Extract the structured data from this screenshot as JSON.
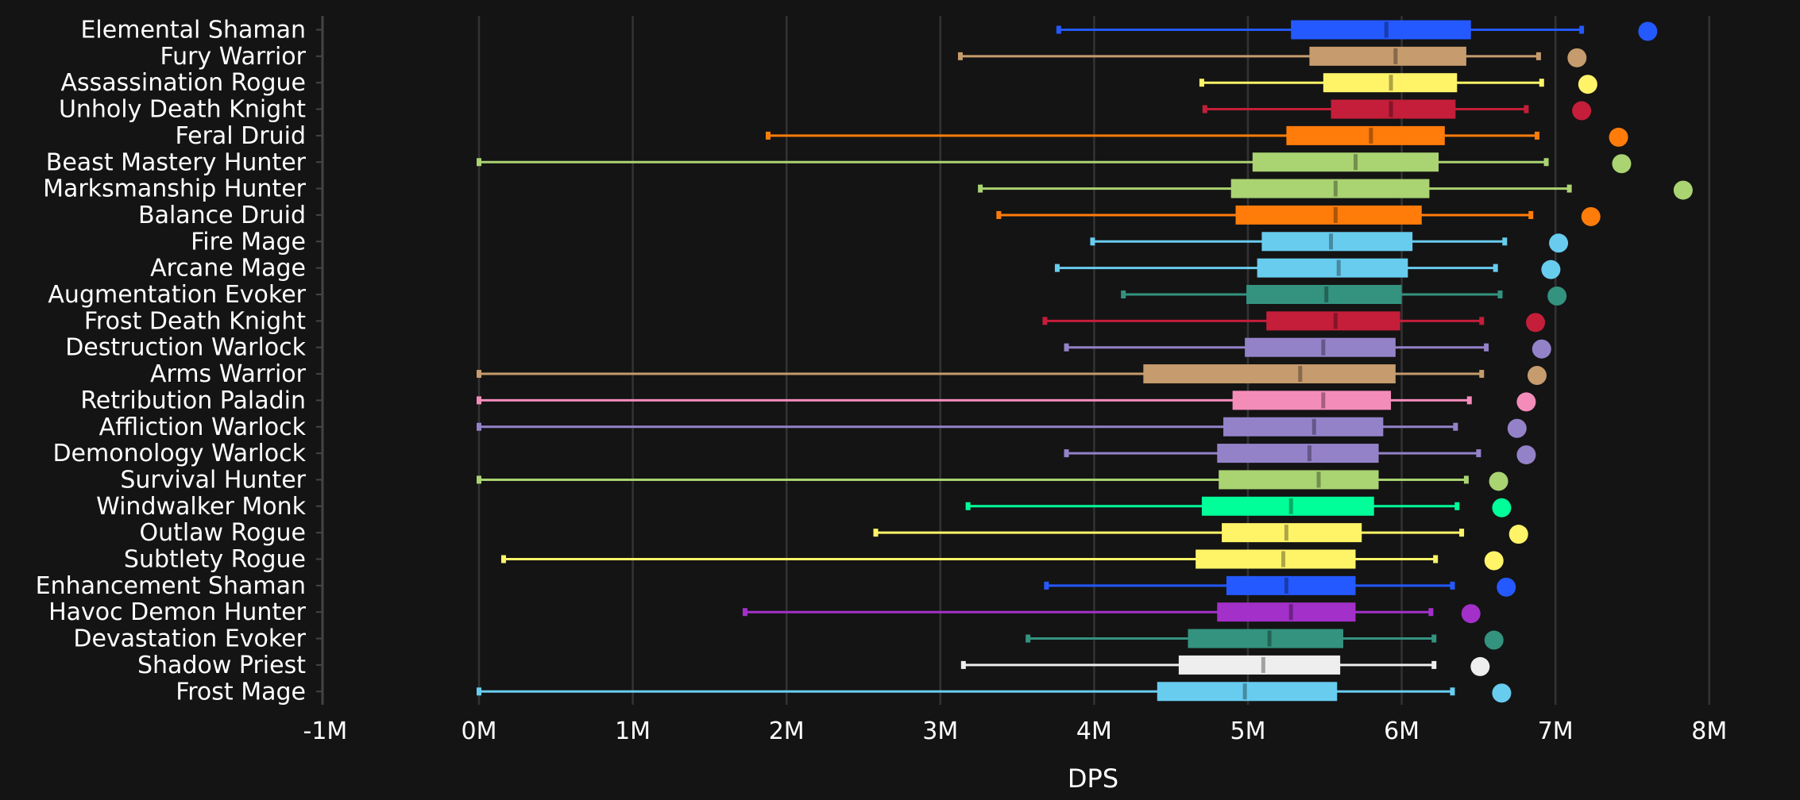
{
  "chart_data": {
    "type": "box",
    "title": "",
    "xlabel": "DPS",
    "ylabel": "",
    "xlim": [
      -1000000,
      8300000
    ],
    "x_ticks": [
      -1000000,
      0,
      1000000,
      2000000,
      3000000,
      4000000,
      5000000,
      6000000,
      7000000,
      8000000
    ],
    "x_tick_labels": [
      "-1M",
      "0M",
      "1M",
      "2M",
      "3M",
      "4M",
      "5M",
      "6M",
      "7M",
      "8M"
    ],
    "grid": "vertical",
    "background": "#141414",
    "series": [
      {
        "name": "Elemental Shaman",
        "color": "#2459ff",
        "min": 3.77,
        "q1": 5.28,
        "median": 5.9,
        "q3": 6.45,
        "max": 7.17,
        "max_point": 7.6
      },
      {
        "name": "Fury Warrior",
        "color": "#c69b6d",
        "min": 3.13,
        "q1": 5.4,
        "median": 5.96,
        "q3": 6.42,
        "max": 6.89,
        "max_point": 7.14
      },
      {
        "name": "Assassination Rogue",
        "color": "#fff468",
        "min": 4.7,
        "q1": 5.49,
        "median": 5.93,
        "q3": 6.36,
        "max": 6.91,
        "max_point": 7.21
      },
      {
        "name": "Unholy Death Knight",
        "color": "#c41e3a",
        "min": 4.72,
        "q1": 5.54,
        "median": 5.93,
        "q3": 6.35,
        "max": 6.81,
        "max_point": 7.17
      },
      {
        "name": "Feral Druid",
        "color": "#ff7c0a",
        "min": 1.88,
        "q1": 5.25,
        "median": 5.8,
        "q3": 6.28,
        "max": 6.88,
        "max_point": 7.41
      },
      {
        "name": "Beast Mastery Hunter",
        "color": "#aad372",
        "min": 0.0,
        "q1": 5.03,
        "median": 5.7,
        "q3": 6.24,
        "max": 6.94,
        "max_point": 7.43
      },
      {
        "name": "Marksmanship Hunter",
        "color": "#aad372",
        "min": 3.26,
        "q1": 4.89,
        "median": 5.57,
        "q3": 6.18,
        "max": 7.09,
        "max_point": 7.83
      },
      {
        "name": "Balance Druid",
        "color": "#ff7c0a",
        "min": 3.38,
        "q1": 4.92,
        "median": 5.57,
        "q3": 6.13,
        "max": 6.84,
        "max_point": 7.23
      },
      {
        "name": "Fire Mage",
        "color": "#68ccef",
        "min": 3.99,
        "q1": 5.09,
        "median": 5.54,
        "q3": 6.07,
        "max": 6.67,
        "max_point": 7.02
      },
      {
        "name": "Arcane Mage",
        "color": "#68ccef",
        "min": 3.76,
        "q1": 5.06,
        "median": 5.59,
        "q3": 6.04,
        "max": 6.61,
        "max_point": 6.97
      },
      {
        "name": "Augmentation Evoker",
        "color": "#33937f",
        "min": 4.19,
        "q1": 4.99,
        "median": 5.51,
        "q3": 6.0,
        "max": 6.64,
        "max_point": 7.01
      },
      {
        "name": "Frost Death Knight",
        "color": "#c41e3a",
        "min": 3.68,
        "q1": 5.12,
        "median": 5.57,
        "q3": 5.99,
        "max": 6.52,
        "max_point": 6.87
      },
      {
        "name": "Destruction Warlock",
        "color": "#9482c9",
        "min": 3.82,
        "q1": 4.98,
        "median": 5.49,
        "q3": 5.96,
        "max": 6.55,
        "max_point": 6.91
      },
      {
        "name": "Arms Warrior",
        "color": "#c69b6d",
        "min": 0.0,
        "q1": 4.32,
        "median": 5.34,
        "q3": 5.96,
        "max": 6.52,
        "max_point": 6.88
      },
      {
        "name": "Retribution Paladin",
        "color": "#f48cba",
        "min": 0.0,
        "q1": 4.9,
        "median": 5.49,
        "q3": 5.93,
        "max": 6.44,
        "max_point": 6.81
      },
      {
        "name": "Affliction Warlock",
        "color": "#9482c9",
        "min": 0.0,
        "q1": 4.84,
        "median": 5.43,
        "q3": 5.88,
        "max": 6.35,
        "max_point": 6.75
      },
      {
        "name": "Demonology Warlock",
        "color": "#9482c9",
        "min": 3.82,
        "q1": 4.8,
        "median": 5.4,
        "q3": 5.85,
        "max": 6.5,
        "max_point": 6.81
      },
      {
        "name": "Survival Hunter",
        "color": "#aad372",
        "min": 0.0,
        "q1": 4.81,
        "median": 5.46,
        "q3": 5.85,
        "max": 6.42,
        "max_point": 6.63
      },
      {
        "name": "Windwalker Monk",
        "color": "#00ff98",
        "min": 3.18,
        "q1": 4.7,
        "median": 5.28,
        "q3": 5.82,
        "max": 6.36,
        "max_point": 6.65
      },
      {
        "name": "Outlaw Rogue",
        "color": "#fff468",
        "min": 2.58,
        "q1": 4.83,
        "median": 5.25,
        "q3": 5.74,
        "max": 6.39,
        "max_point": 6.76
      },
      {
        "name": "Subtlety Rogue",
        "color": "#fff468",
        "min": 0.16,
        "q1": 4.66,
        "median": 5.23,
        "q3": 5.7,
        "max": 6.22,
        "max_point": 6.6
      },
      {
        "name": "Enhancement Shaman",
        "color": "#2459ff",
        "min": 3.69,
        "q1": 4.86,
        "median": 5.25,
        "q3": 5.7,
        "max": 6.33,
        "max_point": 6.68
      },
      {
        "name": "Havoc Demon Hunter",
        "color": "#a330c9",
        "min": 1.73,
        "q1": 4.8,
        "median": 5.28,
        "q3": 5.7,
        "max": 6.19,
        "max_point": 6.45
      },
      {
        "name": "Devastation Evoker",
        "color": "#33937f",
        "min": 3.57,
        "q1": 4.61,
        "median": 5.14,
        "q3": 5.62,
        "max": 6.21,
        "max_point": 6.6
      },
      {
        "name": "Shadow Priest",
        "color": "#eeeeee",
        "min": 3.15,
        "q1": 4.55,
        "median": 5.1,
        "q3": 5.6,
        "max": 6.21,
        "max_point": 6.51
      },
      {
        "name": "Frost Mage",
        "color": "#68ccef",
        "min": 0.0,
        "q1": 4.41,
        "median": 4.98,
        "q3": 5.58,
        "max": 6.33,
        "max_point": 6.65
      }
    ],
    "value_unit_multiplier": 1000000
  }
}
